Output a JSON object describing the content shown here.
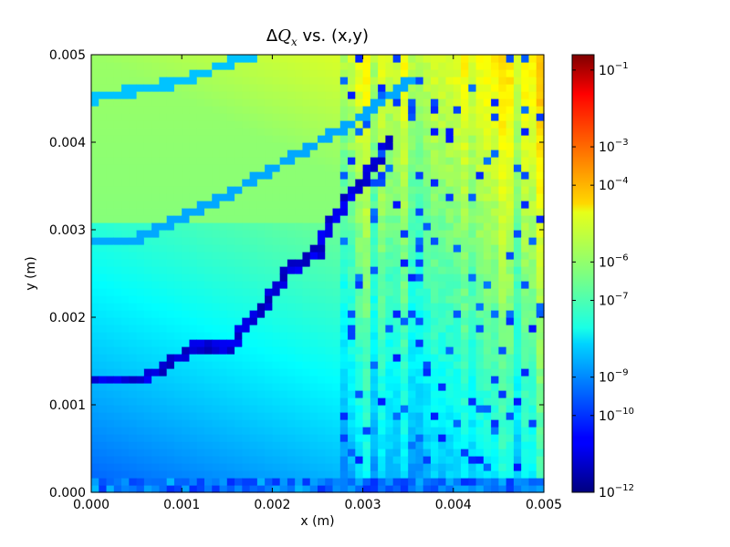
{
  "chart_data": {
    "type": "heatmap",
    "title": {
      "delta": "Δ",
      "symbol": "Q",
      "subscript": "x",
      "rest": " vs. (x,y)"
    },
    "xlabel": "x (m)",
    "ylabel": "y (m)",
    "xlim": [
      0.0,
      0.005
    ],
    "ylim": [
      0.0,
      0.005
    ],
    "x_ticks": [
      "0.000",
      "0.001",
      "0.002",
      "0.003",
      "0.004",
      "0.005"
    ],
    "y_ticks": [
      "0.000",
      "0.001",
      "0.002",
      "0.003",
      "0.004",
      "0.005"
    ],
    "grid_size": [
      60,
      60
    ],
    "colormap": "jet",
    "color_scale": "log",
    "colorbar": {
      "min_exponent": -12,
      "max_exponent": -0.6,
      "ticks": [
        {
          "base": "10",
          "exp": "−1",
          "value": -1
        },
        {
          "base": "10",
          "exp": "−3",
          "value": -3
        },
        {
          "base": "10",
          "exp": "−4",
          "value": -4
        },
        {
          "base": "10",
          "exp": "−6",
          "value": -6
        },
        {
          "base": "10",
          "exp": "−7",
          "value": -7
        },
        {
          "base": "10",
          "exp": "−9",
          "value": -9
        },
        {
          "base": "10",
          "exp": "−10",
          "value": -10
        },
        {
          "base": "10",
          "exp": "−12",
          "value": -12
        }
      ]
    },
    "features": {
      "background_log_range_approx": [
        -10,
        -5.5
      ],
      "resonance_line_value_log": -9.5,
      "high_region_value_log": -5.8,
      "dark_core_value_log": -11.2
    }
  }
}
